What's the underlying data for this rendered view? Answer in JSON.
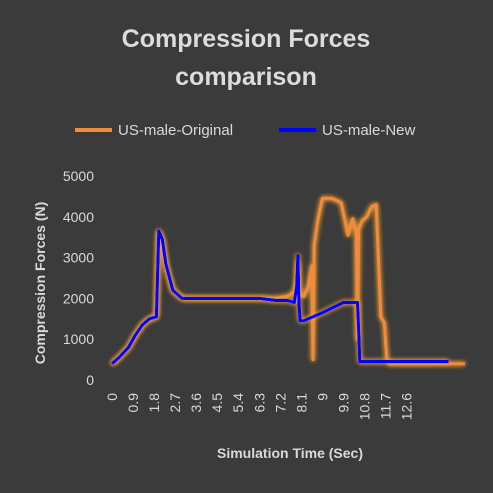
{
  "chart_data": {
    "type": "line",
    "title": "Compression Forces comparison",
    "title_lines": [
      "Compression Forces",
      "comparison"
    ],
    "xlabel": "Simulation Time (Sec)",
    "ylabel": "Compression Forces (N)",
    "ylim": [
      0,
      5000
    ],
    "yticks": [
      0,
      1000,
      2000,
      3000,
      4000,
      5000
    ],
    "xticks": [
      "0",
      "0.9",
      "1.8",
      "2.7",
      "3.6",
      "4.5",
      "5.4",
      "6.3",
      "7.2",
      "8.1",
      "9",
      "9.9",
      "10.8",
      "11.7",
      "12.6"
    ],
    "xlim": [
      0,
      15.1
    ],
    "grid": false,
    "legend_position": "top",
    "series": [
      {
        "name": "US-male-Original",
        "color": "#f08a3c",
        "x": [
          0,
          0.3,
          0.7,
          1.0,
          1.3,
          1.6,
          1.9,
          2.0,
          2.15,
          2.3,
          2.6,
          3.0,
          3.6,
          4.5,
          5.4,
          6.3,
          7.0,
          7.5,
          7.8,
          7.9,
          7.95,
          8.0,
          8.05,
          8.2,
          8.4,
          8.55,
          8.6,
          8.65,
          8.8,
          9.0,
          9.4,
          9.8,
          10.1,
          10.3,
          10.45,
          10.5,
          10.55,
          10.7,
          10.9,
          11.1,
          11.3,
          11.5,
          11.65,
          11.75,
          11.85,
          12.0,
          12.6,
          13.5,
          14.4,
          15.1
        ],
        "y": [
          400,
          550,
          800,
          1100,
          1350,
          1500,
          1550,
          3600,
          3400,
          2800,
          2200,
          2000,
          2000,
          2000,
          2000,
          2000,
          2000,
          2050,
          2150,
          2400,
          2850,
          2250,
          2100,
          2050,
          2300,
          2800,
          500,
          3300,
          3900,
          4450,
          4450,
          4350,
          3550,
          3950,
          3600,
          1000,
          3700,
          3900,
          4000,
          4250,
          4300,
          1550,
          1400,
          550,
          400,
          400,
          400,
          400,
          400,
          400
        ]
      },
      {
        "name": "US-male-New",
        "color": "#0000ff",
        "x": [
          0,
          0.3,
          0.7,
          1.0,
          1.3,
          1.6,
          1.9,
          2.0,
          2.15,
          2.3,
          2.6,
          3.0,
          3.6,
          4.5,
          5.4,
          6.3,
          7.0,
          7.5,
          7.8,
          7.9,
          7.95,
          8.0,
          8.05,
          8.2,
          9.0,
          9.9,
          10.5,
          10.55,
          10.6,
          11.0,
          11.7,
          12.6,
          13.5,
          14.4
        ],
        "y": [
          400,
          550,
          800,
          1100,
          1350,
          1500,
          1550,
          3650,
          3450,
          2850,
          2200,
          2000,
          2000,
          2000,
          2000,
          2000,
          1950,
          1950,
          1900,
          2300,
          3050,
          1850,
          1450,
          1450,
          1650,
          1900,
          1900,
          1250,
          450,
          450,
          450,
          450,
          450,
          450
        ]
      }
    ]
  }
}
